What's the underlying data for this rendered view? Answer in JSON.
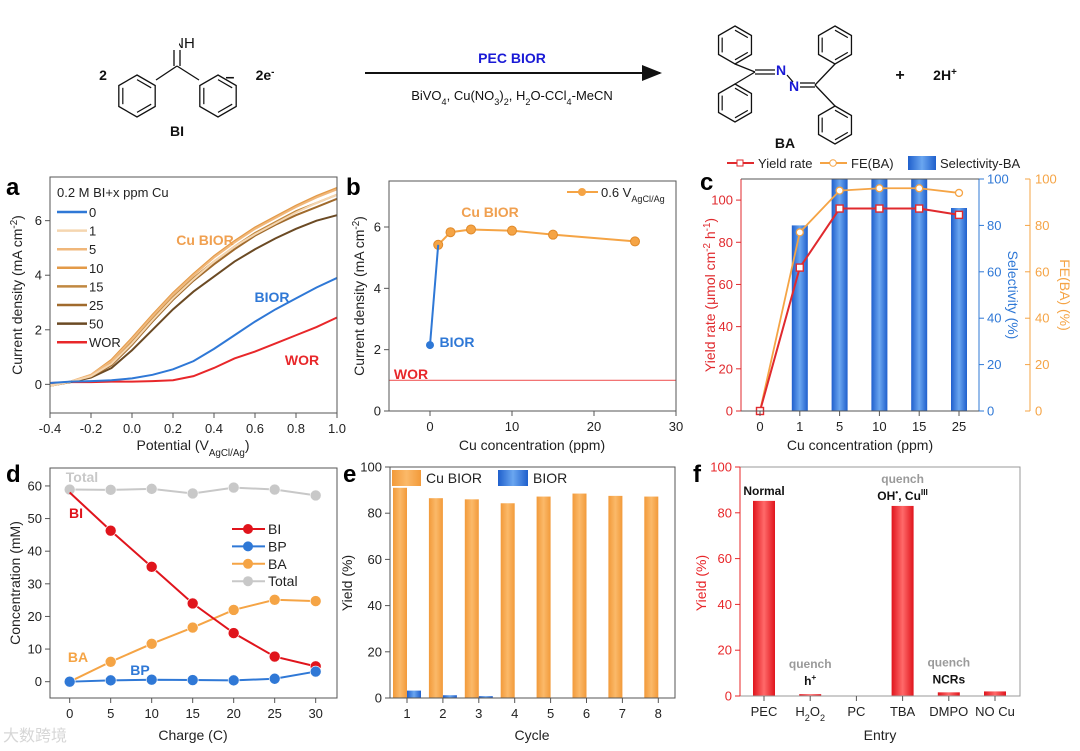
{
  "scheme": {
    "coef": "2",
    "nh": "NH",
    "bi_label": "BI",
    "minus": "–",
    "electrons": "2e",
    "electrons_sup": "-",
    "arrow_top": "PEC BIOR",
    "conditions": [
      "BiVO",
      "4",
      ", Cu(NO",
      "3",
      ")",
      "2",
      ", H",
      "2",
      "O-CCl",
      "4",
      "-MeCN"
    ],
    "n1": "N",
    "n2": "N",
    "ba_label": "BA",
    "plus": "+",
    "protons": "2H",
    "protons_sup": "+",
    "colors": {
      "nitrogen": "#1a1ad6",
      "arrow_label": "#1a1ad6"
    }
  },
  "watermark": "大数跨境",
  "chart_data": [
    {
      "panel": "a",
      "type": "line",
      "xlabel": [
        "Potential (V",
        "AgCl/Ag",
        ")"
      ],
      "ylabel": [
        "Current density (mA cm",
        "-2",
        ")"
      ],
      "xlim": [
        -0.4,
        1.0
      ],
      "ylim": [
        -1.05,
        7.6
      ],
      "xticks": [
        -0.4,
        -0.2,
        0.0,
        0.2,
        0.4,
        0.6,
        0.8,
        1.0
      ],
      "xtick_labels": [
        "-0.4",
        "-0.2",
        "0.0",
        "0.2",
        "0.4",
        "0.6",
        "0.8",
        "1.0"
      ],
      "yticks": [
        0,
        2,
        4,
        6
      ],
      "legend_title": "0.2 M BI+x ppm Cu",
      "x": [
        -0.4,
        -0.3,
        -0.2,
        -0.1,
        0,
        0.1,
        0.2,
        0.3,
        0.4,
        0.5,
        0.6,
        0.7,
        0.8,
        0.9,
        1.0
      ],
      "series": [
        {
          "name": "0",
          "color": "#2f78d6",
          "values": [
            0.05,
            0.1,
            0.12,
            0.15,
            0.22,
            0.35,
            0.55,
            0.85,
            1.3,
            1.8,
            2.3,
            2.75,
            3.15,
            3.55,
            3.9
          ]
        },
        {
          "name": "1",
          "color": "#f5d6b0",
          "values": [
            -0.05,
            0.1,
            0.3,
            0.75,
            1.5,
            2.35,
            3.15,
            3.85,
            4.5,
            5.05,
            5.5,
            5.9,
            6.3,
            6.65,
            6.95
          ]
        },
        {
          "name": "5",
          "color": "#f0b77a",
          "values": [
            -0.05,
            0.1,
            0.35,
            0.85,
            1.65,
            2.5,
            3.3,
            4.0,
            4.65,
            5.2,
            5.7,
            6.1,
            6.5,
            6.85,
            7.15
          ]
        },
        {
          "name": "10",
          "color": "#e39a48",
          "values": [
            -0.05,
            0.1,
            0.35,
            0.9,
            1.7,
            2.55,
            3.35,
            4.05,
            4.7,
            5.25,
            5.75,
            6.15,
            6.55,
            6.9,
            7.2
          ]
        },
        {
          "name": "15",
          "color": "#c08840",
          "values": [
            -0.05,
            0.1,
            0.3,
            0.8,
            1.55,
            2.4,
            3.2,
            3.9,
            4.5,
            5.05,
            5.55,
            5.95,
            6.35,
            6.65,
            6.95
          ]
        },
        {
          "name": "25",
          "color": "#a06a2c",
          "values": [
            -0.05,
            0.1,
            0.28,
            0.7,
            1.45,
            2.3,
            3.1,
            3.8,
            4.4,
            4.95,
            5.45,
            5.85,
            6.2,
            6.5,
            6.8
          ]
        },
        {
          "name": "50",
          "color": "#6b4a24",
          "values": [
            -0.05,
            0.08,
            0.25,
            0.6,
            1.25,
            2.0,
            2.75,
            3.4,
            3.95,
            4.5,
            4.95,
            5.35,
            5.7,
            6.0,
            6.2
          ]
        },
        {
          "name": "WOR",
          "color": "#e8272a",
          "values": [
            0.05,
            0.08,
            0.08,
            0.1,
            0.1,
            0.12,
            0.15,
            0.3,
            0.6,
            0.95,
            1.2,
            1.5,
            1.8,
            2.1,
            2.45
          ]
        }
      ],
      "annotations": [
        {
          "text": "Cu BIOR",
          "color": "#f0a050"
        },
        {
          "text": "BIOR",
          "color": "#2f78d6"
        },
        {
          "text": "WOR",
          "color": "#e8272a"
        }
      ]
    },
    {
      "panel": "b",
      "type": "line",
      "xlabel": "Cu concentration (ppm)",
      "ylabel": [
        "Current density (mA cm",
        "-2",
        ")"
      ],
      "xlim": [
        -5,
        30
      ],
      "ylim": [
        0,
        7.5
      ],
      "xticks": [
        0,
        10,
        20,
        30
      ],
      "yticks": [
        0,
        2,
        4,
        6
      ],
      "legend": [
        "0.6 V",
        "AgCl/Ag"
      ],
      "series": [
        {
          "name": "Cu BIOR",
          "color": "#f5a445",
          "x": [
            1,
            2.5,
            5,
            10,
            15,
            25
          ],
          "values": [
            5.42,
            5.83,
            5.92,
            5.88,
            5.75,
            5.53
          ]
        },
        {
          "name": "BIOR",
          "color": "#2f78d6",
          "x": [
            0,
            1
          ],
          "values": [
            2.15,
            5.42
          ]
        }
      ],
      "wor_level": 1.0,
      "annotations": [
        {
          "text": "Cu BIOR",
          "color": "#f0a050"
        },
        {
          "text": "BIOR",
          "color": "#2f78d6"
        },
        {
          "text": "WOR",
          "color": "#e8272a"
        }
      ]
    },
    {
      "panel": "c",
      "type": "bar+line",
      "categories": [
        "0",
        "1",
        "5",
        "10",
        "15",
        "25"
      ],
      "xlabel": "Cu concentration (ppm)",
      "ylabel_left": [
        "Yield rate (μmol cm",
        "-2",
        " h",
        "-1",
        ")"
      ],
      "ylabel_right1": "Selectivity (%)",
      "ylabel_right2": "FE(BA) (%)",
      "ylim_left": [
        0,
        110
      ],
      "ylim_right": [
        0,
        100
      ],
      "yticks_left": [
        0,
        20,
        40,
        60,
        80,
        100
      ],
      "yticks_right": [
        0,
        20,
        40,
        60,
        80,
        100
      ],
      "series": [
        {
          "name": "Yield rate",
          "kind": "line",
          "axis": "left",
          "color": "#e02a2e",
          "values": [
            0,
            68,
            96,
            96,
            96,
            93
          ]
        },
        {
          "name": "FE(BA)",
          "kind": "line",
          "axis": "right",
          "color": "#f5a445",
          "values": [
            0,
            77,
            95,
            96,
            96,
            94
          ]
        },
        {
          "name": "Selectivity-BA",
          "kind": "bar",
          "axis": "right",
          "color": "#2f6fd6",
          "values": [
            null,
            80,
            100,
            100,
            100,
            87.5
          ]
        }
      ],
      "colors": {
        "left": "#e02a2e",
        "right1": "#2f78d6",
        "right2": "#f5a445"
      }
    },
    {
      "panel": "d",
      "type": "line",
      "xlabel": "Charge (C)",
      "ylabel": "Concentration (mM)",
      "xlim": [
        -2.4,
        32.6
      ],
      "ylim": [
        -5,
        65.5
      ],
      "xticks": [
        0,
        5,
        10,
        15,
        20,
        25,
        30
      ],
      "yticks": [
        0,
        10,
        20,
        30,
        40,
        50,
        60
      ],
      "x": [
        0,
        5,
        10,
        15,
        20,
        25,
        30
      ],
      "series": [
        {
          "name": "Total",
          "color": "#c8c8c8",
          "values": [
            58.9,
            58.8,
            59.1,
            57.7,
            59.5,
            58.9,
            57.1
          ]
        },
        {
          "name": "BA",
          "color": "#f5a445",
          "values": [
            0,
            6.1,
            11.6,
            16.6,
            22,
            25.1,
            24.7
          ]
        },
        {
          "name": "BI",
          "color": "#e0141c",
          "values": [
            58,
            46.3,
            35.2,
            24,
            14.9,
            7.7,
            4.7
          ]
        },
        {
          "name": "BP",
          "color": "#2f78d6",
          "values": [
            0,
            0.4,
            0.6,
            0.5,
            0.4,
            0.9,
            3.1
          ]
        }
      ],
      "legend_order": [
        "BI",
        "BP",
        "BA",
        "Total"
      ],
      "annotations": [
        {
          "text": "Total",
          "color": "#c8c8c8"
        },
        {
          "text": "BI",
          "color": "#e0141c"
        },
        {
          "text": "BA",
          "color": "#f5a445"
        },
        {
          "text": "BP",
          "color": "#2f78d6"
        }
      ]
    },
    {
      "panel": "e",
      "type": "bar",
      "xlabel": "Cycle",
      "ylabel": "Yield (%)",
      "categories": [
        "1",
        "2",
        "3",
        "4",
        "5",
        "6",
        "7",
        "8"
      ],
      "ylim": [
        0,
        100
      ],
      "yticks": [
        0,
        20,
        40,
        60,
        80,
        100
      ],
      "series": [
        {
          "name": "Cu BIOR",
          "color": "#f5a445",
          "values": [
            91,
            86.5,
            86,
            84.3,
            87.2,
            88.5,
            87.5,
            87.2
          ]
        },
        {
          "name": "BIOR",
          "color": "#2f6fd6",
          "values": [
            3.2,
            1.2,
            0.8,
            0,
            0,
            0,
            0,
            0
          ]
        }
      ]
    },
    {
      "panel": "f",
      "type": "bar",
      "xlabel": "Entry",
      "ylabel": "Yield (%)",
      "categories": [
        [
          "PEC"
        ],
        [
          "H",
          "2",
          "O",
          "2"
        ],
        [
          "PC"
        ],
        [
          "TBA"
        ],
        [
          "DMPO"
        ],
        [
          "NO Cu"
        ]
      ],
      "ylim": [
        0,
        100
      ],
      "yticks": [
        0,
        20,
        40,
        60,
        80,
        100
      ],
      "values": [
        85.2,
        0.8,
        0,
        83,
        1.6,
        2.0
      ],
      "color": "#e8272a",
      "annotations": [
        {
          "category": 0,
          "quench": null,
          "label": [
            "Normal"
          ]
        },
        {
          "category": 1,
          "quench": "quench",
          "label": [
            "h",
            "+"
          ]
        },
        {
          "category": 3,
          "quench": "quench",
          "label": [
            "OH",
            "•",
            ", Cu",
            "III"
          ]
        },
        {
          "category": 4,
          "quench": "quench",
          "label": [
            "NCRs"
          ]
        }
      ]
    }
  ]
}
